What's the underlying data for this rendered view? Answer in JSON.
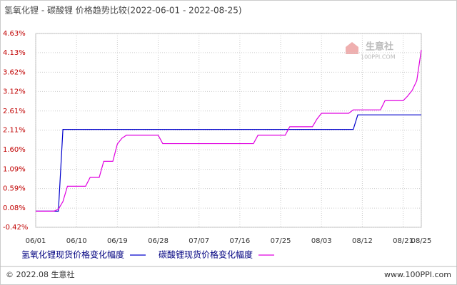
{
  "chart_data": {
    "type": "line",
    "title": "氢氧化锂 - 碳酸锂 价格趋势比较(2022-06-01 - 2022-08-25)",
    "categories": [
      "06/01",
      null,
      null,
      null,
      null,
      null,
      null,
      null,
      null,
      "06/10",
      null,
      null,
      null,
      null,
      null,
      null,
      null,
      null,
      "06/19",
      null,
      null,
      null,
      null,
      null,
      null,
      null,
      null,
      "06/28",
      null,
      null,
      null,
      null,
      null,
      null,
      null,
      null,
      "07/07",
      null,
      null,
      null,
      null,
      null,
      null,
      null,
      null,
      "07/16",
      null,
      null,
      null,
      null,
      null,
      null,
      null,
      null,
      "07/25",
      null,
      null,
      null,
      null,
      null,
      null,
      null,
      null,
      "08/03",
      null,
      null,
      null,
      null,
      null,
      null,
      null,
      null,
      "08/12",
      null,
      null,
      null,
      null,
      null,
      null,
      null,
      null,
      "08/21",
      null,
      null,
      null,
      "08/25"
    ],
    "series": [
      {
        "name": "氢氧化锂现货价格变化幅度",
        "color": "#0000cc",
        "values": [
          0,
          0,
          0,
          0,
          0,
          0,
          2.13,
          2.13,
          2.13,
          2.13,
          2.13,
          2.13,
          2.13,
          2.13,
          2.13,
          2.13,
          2.13,
          2.13,
          2.13,
          2.13,
          2.13,
          2.13,
          2.13,
          2.13,
          2.13,
          2.13,
          2.13,
          2.13,
          2.13,
          2.13,
          2.13,
          2.13,
          2.13,
          2.13,
          2.13,
          2.13,
          2.13,
          2.13,
          2.13,
          2.13,
          2.13,
          2.13,
          2.13,
          2.13,
          2.13,
          2.13,
          2.13,
          2.13,
          2.13,
          2.13,
          2.13,
          2.13,
          2.13,
          2.13,
          2.13,
          2.13,
          2.13,
          2.13,
          2.13,
          2.13,
          2.13,
          2.13,
          2.13,
          2.13,
          2.13,
          2.13,
          2.13,
          2.13,
          2.13,
          2.13,
          2.13,
          2.51,
          2.51,
          2.51,
          2.51,
          2.51,
          2.51,
          2.51,
          2.51,
          2.51,
          2.51,
          2.51,
          2.51,
          2.51,
          2.51,
          2.51
        ]
      },
      {
        "name": "碳酸锂现货价格变化幅度",
        "color": "#e000e0",
        "values": [
          0,
          0,
          0,
          0,
          0,
          0.05,
          0.25,
          0.65,
          0.65,
          0.65,
          0.65,
          0.65,
          0.88,
          0.88,
          0.88,
          1.3,
          1.3,
          1.3,
          1.75,
          1.9,
          1.98,
          1.98,
          1.98,
          1.98,
          1.98,
          1.98,
          1.98,
          1.98,
          1.76,
          1.76,
          1.76,
          1.76,
          1.76,
          1.76,
          1.76,
          1.76,
          1.76,
          1.76,
          1.76,
          1.76,
          1.76,
          1.76,
          1.76,
          1.76,
          1.76,
          1.76,
          1.76,
          1.76,
          1.76,
          1.98,
          1.98,
          1.98,
          1.98,
          1.98,
          1.98,
          1.98,
          2.2,
          2.2,
          2.2,
          2.2,
          2.2,
          2.2,
          2.4,
          2.55,
          2.55,
          2.55,
          2.55,
          2.55,
          2.55,
          2.55,
          2.64,
          2.64,
          2.64,
          2.64,
          2.64,
          2.64,
          2.64,
          2.88,
          2.88,
          2.88,
          2.88,
          2.88,
          3.0,
          3.15,
          3.4,
          4.2
        ]
      }
    ],
    "ylim": [
      -0.42,
      4.63
    ],
    "yticks": [
      {
        "value": -0.42,
        "label": "-0.42%"
      },
      {
        "value": 0.08,
        "label": "0.08%"
      },
      {
        "value": 0.59,
        "label": "0.59%"
      },
      {
        "value": 1.09,
        "label": "1.09%"
      },
      {
        "value": 1.6,
        "label": "1.60%"
      },
      {
        "value": 2.11,
        "label": "2.11%"
      },
      {
        "value": 2.61,
        "label": "2.61%"
      },
      {
        "value": 3.12,
        "label": "3.12%"
      },
      {
        "value": 3.62,
        "label": "3.62%"
      },
      {
        "value": 4.13,
        "label": "4.13%"
      },
      {
        "value": 4.63,
        "label": "4.63%"
      }
    ],
    "grid": true
  },
  "watermark": {
    "name": "生意社",
    "site": "100PPI.COM"
  },
  "footer": {
    "left": "© 2022.08 生意社",
    "right": "www.100PPI.com"
  }
}
